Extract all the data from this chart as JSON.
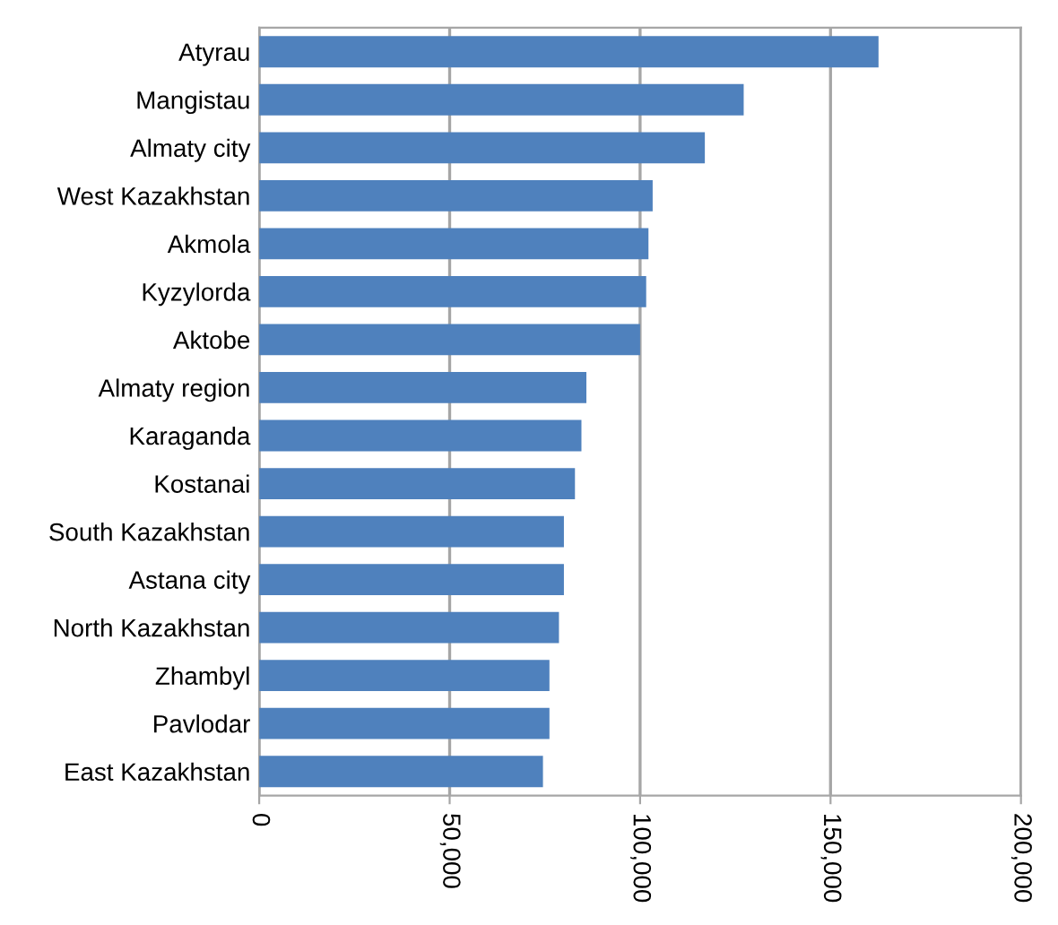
{
  "chart_data": {
    "type": "bar",
    "orientation": "horizontal",
    "categories": [
      "Atyrau",
      "Mangistau",
      "Almaty city",
      "West Kazakhstan",
      "Akmola",
      "Kyzylorda",
      "Aktobe",
      "Almaty region",
      "Karaganda",
      "Kostanai",
      "South Kazakhstan",
      "Astana city",
      "North Kazakhstan",
      "Zhambyl",
      "Pavlodar",
      "East Kazakhstan"
    ],
    "values": [
      162600,
      127200,
      117000,
      103300,
      102200,
      101600,
      100000,
      85900,
      84600,
      82900,
      80000,
      80000,
      78700,
      76200,
      76200,
      74500
    ],
    "color": "#4f81bd",
    "xlim": [
      0,
      200000
    ],
    "xticks": [
      {
        "value": 0,
        "label": "0"
      },
      {
        "value": 50000,
        "label": "50,000"
      },
      {
        "value": 100000,
        "label": "100,000"
      },
      {
        "value": 150000,
        "label": "150,000"
      },
      {
        "value": 200000,
        "label": "200,000"
      }
    ],
    "grid": "x",
    "legend": false
  }
}
